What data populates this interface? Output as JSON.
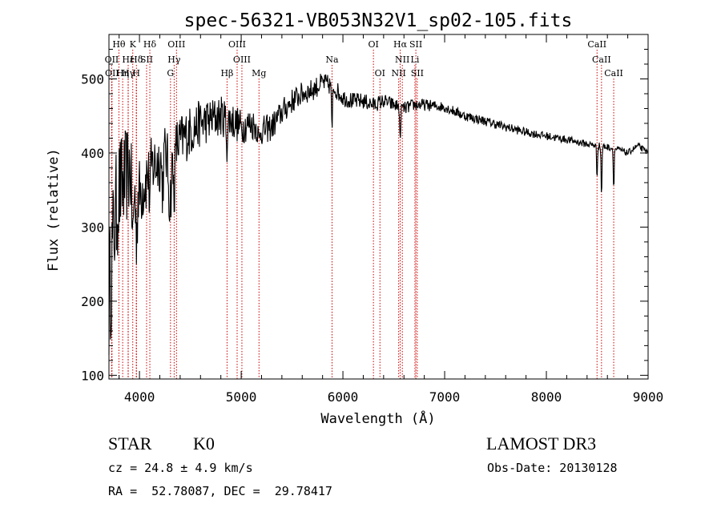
{
  "chart_data": {
    "type": "line",
    "title": "spec-56321-VB053N32V1_sp02-105.fits",
    "xlabel": "Wavelength (Å)",
    "ylabel": "Flux (relative)",
    "xlim": [
      3700,
      9000
    ],
    "ylim": [
      95,
      560
    ],
    "xticks": [
      "4000",
      "5000",
      "6000",
      "7000",
      "8000",
      "9000"
    ],
    "yticks": [
      "100",
      "200",
      "300",
      "400",
      "500"
    ],
    "series": [
      {
        "name": "flux",
        "continuum": [
          [
            3700,
            200
          ],
          [
            3750,
            300
          ],
          [
            3800,
            350
          ],
          [
            3850,
            360
          ],
          [
            3900,
            380
          ],
          [
            3950,
            370
          ],
          [
            4000,
            345
          ],
          [
            4050,
            360
          ],
          [
            4100,
            380
          ],
          [
            4200,
            390
          ],
          [
            4300,
            405
          ],
          [
            4400,
            415
          ],
          [
            4500,
            430
          ],
          [
            4600,
            440
          ],
          [
            4700,
            445
          ],
          [
            4800,
            450
          ],
          [
            4900,
            445
          ],
          [
            5000,
            435
          ],
          [
            5100,
            440
          ],
          [
            5200,
            430
          ],
          [
            5300,
            435
          ],
          [
            5400,
            455
          ],
          [
            5500,
            470
          ],
          [
            5600,
            480
          ],
          [
            5700,
            485
          ],
          [
            5800,
            495
          ],
          [
            5900,
            490
          ],
          [
            6000,
            475
          ],
          [
            6100,
            470
          ],
          [
            6200,
            470
          ],
          [
            6300,
            465
          ],
          [
            6400,
            470
          ],
          [
            6500,
            465
          ],
          [
            6600,
            460
          ],
          [
            6700,
            465
          ],
          [
            6800,
            465
          ],
          [
            7000,
            462
          ],
          [
            7200,
            450
          ],
          [
            7400,
            443
          ],
          [
            7600,
            435
          ],
          [
            7800,
            428
          ],
          [
            8000,
            423
          ],
          [
            8200,
            418
          ],
          [
            8400,
            412
          ],
          [
            8600,
            408
          ],
          [
            8700,
            405
          ],
          [
            8800,
            400
          ],
          [
            8900,
            410
          ],
          [
            9000,
            400
          ]
        ],
        "absorption": [
          [
            3934,
            90,
            12
          ],
          [
            3969,
            70,
            12
          ],
          [
            4101,
            40,
            10
          ],
          [
            4227,
            40,
            10
          ],
          [
            4300,
            70,
            20
          ],
          [
            4340,
            60,
            12
          ],
          [
            4861,
            35,
            10
          ],
          [
            5175,
            20,
            10
          ],
          [
            5893,
            70,
            6
          ],
          [
            6563,
            55,
            6
          ],
          [
            8498,
            45,
            6
          ],
          [
            8542,
            70,
            6
          ],
          [
            8662,
            55,
            6
          ]
        ],
        "noise": [
          [
            3700,
            90
          ],
          [
            4000,
            50
          ],
          [
            4600,
            32
          ],
          [
            5200,
            20
          ],
          [
            6000,
            12
          ],
          [
            7000,
            7
          ],
          [
            9000,
            4
          ]
        ]
      }
    ],
    "lines": [
      {
        "label": "Hθ",
        "wl": 3798,
        "row": 0
      },
      {
        "label": "K",
        "wl": 3934,
        "row": 0
      },
      {
        "label": "Hδ",
        "wl": 4102,
        "row": 0
      },
      {
        "label": "OIII",
        "wl": 4364,
        "row": 0
      },
      {
        "label": "OIII",
        "wl": 4960,
        "row": 0
      },
      {
        "label": "OI",
        "wl": 6300,
        "row": 0
      },
      {
        "label": "Hα",
        "wl": 6563,
        "row": 0
      },
      {
        "label": "SII",
        "wl": 6717,
        "row": 0
      },
      {
        "label": "CaII",
        "wl": 8498,
        "row": 0
      },
      {
        "label": "OII",
        "wl": 3727,
        "row": 1
      },
      {
        "label": "Hε",
        "wl": 3889,
        "row": 1
      },
      {
        "label": "Hδ",
        "wl": 3970,
        "row": 1
      },
      {
        "label": "SII",
        "wl": 4070,
        "row": 1
      },
      {
        "label": "Hγ",
        "wl": 4341,
        "row": 1
      },
      {
        "label": "OIII",
        "wl": 5007,
        "row": 1
      },
      {
        "label": "NII",
        "wl": 6584,
        "row": 1
      },
      {
        "label": "Li",
        "wl": 6708,
        "row": 1
      },
      {
        "label": "CaII",
        "wl": 8542,
        "row": 1
      },
      {
        "label": "OII",
        "wl": 3730,
        "row": 2
      },
      {
        "label": "Hη",
        "wl": 3835,
        "row": 2
      },
      {
        "label": "Hγ",
        "wl": 3889,
        "row": 2
      },
      {
        "label": "H",
        "wl": 3969,
        "row": 2
      },
      {
        "label": "G",
        "wl": 4305,
        "row": 2
      },
      {
        "label": "Hβ",
        "wl": 4861,
        "row": 2
      },
      {
        "label": "Mg",
        "wl": 5175,
        "row": 2
      },
      {
        "label": "Na",
        "wl": 5893,
        "row": 1
      },
      {
        "label": "OI",
        "wl": 6364,
        "row": 2
      },
      {
        "label": "NII",
        "wl": 6548,
        "row": 2
      },
      {
        "label": "SII",
        "wl": 6731,
        "row": 2
      },
      {
        "label": "CaII",
        "wl": 8662,
        "row": 2
      }
    ]
  },
  "info": {
    "class": "STAR",
    "subclass": "K0",
    "survey": "LAMOST DR3",
    "cz": "cz = 24.8 ± 4.9 km/s",
    "obs_date": "Obs-Date: 20130128",
    "radec": "RA =  52.78087, DEC =  29.78417"
  },
  "colors": {
    "line_marker": "#cc0000",
    "spectrum": "#000000",
    "axes": "#000000"
  }
}
